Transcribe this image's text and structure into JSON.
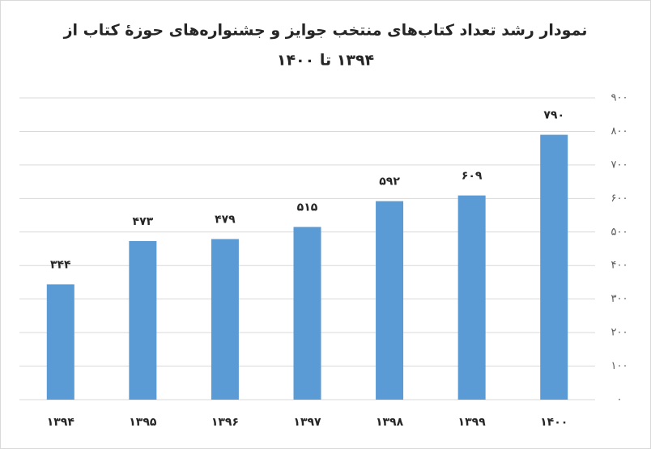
{
  "chart_data": {
    "type": "bar",
    "title": [
      "نمودار رشد تعداد کتاب‌های منتخب جوایز و جشنواره‌های حوزهٔ کتاب از",
      "۱۳۹۴ تا ۱۴۰۰"
    ],
    "categories": [
      "۱۳۹۴",
      "۱۳۹۵",
      "۱۳۹۶",
      "۱۳۹۷",
      "۱۳۹۸",
      "۱۳۹۹",
      "۱۴۰۰"
    ],
    "values": [
      344,
      473,
      479,
      515,
      592,
      609,
      790
    ],
    "value_labels": [
      "۳۴۴",
      "۴۷۳",
      "۴۷۹",
      "۵۱۵",
      "۵۹۲",
      "۶۰۹",
      "۷۹۰"
    ],
    "color": "#5b9bd5",
    "ylim": [
      0,
      900
    ],
    "yticks": [
      {
        "value": 0,
        "label": "۰"
      },
      {
        "value": 100,
        "label": "۱۰۰"
      },
      {
        "value": 200,
        "label": "۲۰۰"
      },
      {
        "value": 300,
        "label": "۳۰۰"
      },
      {
        "value": 400,
        "label": "۴۰۰"
      },
      {
        "value": 500,
        "label": "۵۰۰"
      },
      {
        "value": 600,
        "label": "۶۰۰"
      },
      {
        "value": 700,
        "label": "۷۰۰"
      },
      {
        "value": 800,
        "label": "۸۰۰"
      },
      {
        "value": 900,
        "label": "۹۰۰"
      }
    ],
    "y_axis_side": "right",
    "grid": true
  }
}
